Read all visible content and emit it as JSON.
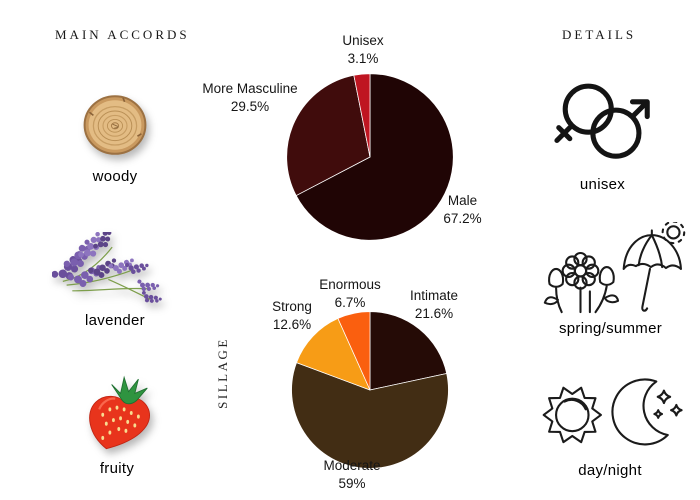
{
  "page": {
    "background": "#ffffff"
  },
  "left_panel": {
    "title": "MAIN ACCORDS",
    "items": [
      {
        "label": "woody",
        "icon": "wood-slice-photo"
      },
      {
        "label": "lavender",
        "icon": "lavender-sprig-photo"
      },
      {
        "label": "fruity",
        "icon": "strawberry-photo"
      }
    ]
  },
  "right_panel": {
    "title": "DETAILS",
    "items": [
      {
        "label": "unisex",
        "icon": "gender-symbols-icon"
      },
      {
        "label": "spring/summer",
        "icon": "flowers-umbrella-sun-icon"
      },
      {
        "label": "day/night",
        "icon": "sun-moon-icon"
      }
    ]
  },
  "chart_data": [
    {
      "type": "pie",
      "name": "gender-audience",
      "categories": [
        "Male",
        "More Masculine",
        "Unisex"
      ],
      "values": [
        67.2,
        29.5,
        3.1
      ],
      "value_labels": [
        "67.2%",
        "29.5%",
        "3.1%"
      ],
      "colors": [
        "#200505",
        "#400c0c",
        "#bf1521"
      ],
      "start_angle_deg": -90,
      "direction": "clockwise",
      "legend": "external-labels"
    },
    {
      "type": "pie",
      "name": "sillage",
      "axis_label": "SILLAGE",
      "categories": [
        "Intimate",
        "Moderate",
        "Strong",
        "Enormous"
      ],
      "values": [
        21.6,
        59,
        12.6,
        6.7
      ],
      "value_labels": [
        "21.6%",
        "59%",
        "12.6%",
        "6.7%"
      ],
      "colors": [
        "#250b06",
        "#422d14",
        "#f79c16",
        "#fa5f0f"
      ],
      "start_angle_deg": -90,
      "direction": "clockwise",
      "legend": "external-labels"
    }
  ]
}
